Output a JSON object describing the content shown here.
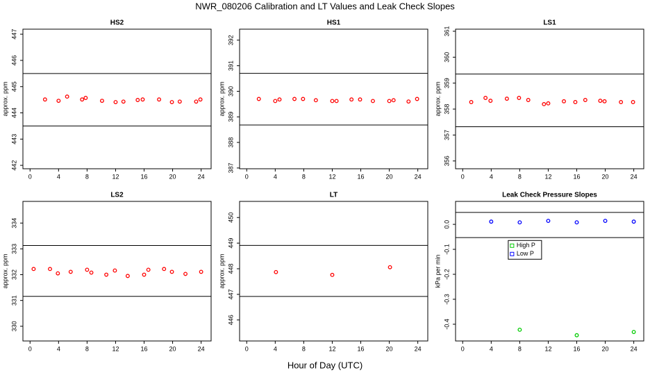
{
  "title": "NWR_080206  Calibration and LT Values and Leak Check Slopes",
  "xlabel": "Hour of Day (UTC)",
  "chart_data": [
    {
      "type": "scatter",
      "title": "HS2",
      "ylabel": "approx. ppm",
      "color": "#ff0000",
      "x": [
        2.1,
        4.0,
        5.2,
        7.3,
        7.8,
        10.1,
        12.0,
        13.1,
        15.1,
        15.8,
        18.1,
        19.9,
        21.0,
        23.3,
        23.9
      ],
      "values": [
        444.51,
        444.46,
        444.62,
        444.51,
        444.57,
        444.46,
        444.41,
        444.43,
        444.49,
        444.51,
        444.51,
        444.41,
        444.43,
        444.43,
        444.51
      ],
      "hlines": [
        445.5,
        443.5
      ],
      "xlim": [
        -1,
        25.4
      ],
      "xticks": [
        0,
        4,
        8,
        12,
        16,
        20,
        24
      ],
      "ylim": [
        441.87,
        447.19
      ],
      "yticks": [
        442,
        443,
        444,
        445,
        446,
        447
      ]
    },
    {
      "type": "scatter",
      "title": "HS1",
      "ylabel": "approx. ppm",
      "color": "#ff0000",
      "x": [
        1.7,
        4.0,
        4.6,
        6.7,
        7.9,
        9.7,
        12.0,
        12.6,
        14.7,
        15.9,
        17.7,
        20.0,
        20.6,
        22.7,
        23.9
      ],
      "values": [
        389.7,
        389.62,
        389.68,
        389.7,
        389.7,
        389.65,
        389.62,
        389.62,
        389.68,
        389.68,
        389.62,
        389.62,
        389.65,
        389.6,
        389.7
      ],
      "hlines": [
        390.7,
        388.68
      ],
      "xlim": [
        -1,
        25.4
      ],
      "xticks": [
        0,
        4,
        8,
        12,
        16,
        20,
        24
      ],
      "ylim": [
        386.97,
        392.43
      ],
      "yticks": [
        387,
        388,
        389,
        390,
        391,
        392
      ]
    },
    {
      "type": "scatter",
      "title": "LS1",
      "ylabel": "approx. ppm",
      "color": "#ff0000",
      "x": [
        1.2,
        3.2,
        3.9,
        6.2,
        7.9,
        9.2,
        11.4,
        12.0,
        14.2,
        15.8,
        17.2,
        19.3,
        19.9,
        22.2,
        23.9
      ],
      "values": [
        358.27,
        358.43,
        358.32,
        358.4,
        358.43,
        358.35,
        358.19,
        358.22,
        358.3,
        358.27,
        358.35,
        358.32,
        358.3,
        358.27,
        358.27
      ],
      "hlines": [
        359.35,
        357.32
      ],
      "xlim": [
        -1,
        25.4
      ],
      "xticks": [
        0,
        4,
        8,
        12,
        16,
        20,
        24
      ],
      "ylim": [
        355.7,
        361.08
      ],
      "yticks": [
        356,
        357,
        358,
        359,
        360,
        361
      ]
    },
    {
      "type": "scatter",
      "title": "LS2",
      "ylabel": "approx. ppm",
      "color": "#ff0000",
      "x": [
        0.5,
        2.8,
        3.9,
        5.7,
        8.0,
        8.6,
        10.7,
        11.9,
        13.7,
        16.0,
        16.6,
        18.8,
        19.9,
        21.8,
        24.0
      ],
      "values": [
        332.22,
        332.22,
        332.05,
        332.11,
        332.19,
        332.08,
        332.0,
        332.16,
        331.95,
        332.0,
        332.19,
        332.22,
        332.11,
        332.03,
        332.11
      ],
      "hlines": [
        333.13,
        331.16
      ],
      "xlim": [
        -1,
        25.4
      ],
      "xticks": [
        0,
        4,
        8,
        12,
        16,
        20,
        24
      ],
      "ylim": [
        329.43,
        334.84
      ],
      "yticks": [
        330,
        331,
        332,
        333,
        334
      ]
    },
    {
      "type": "scatter",
      "title": "LT",
      "ylabel": "approx. ppm",
      "color": "#ff0000",
      "x": [
        4.1,
        12.0,
        20.1
      ],
      "values": [
        447.87,
        447.76,
        448.06
      ],
      "hlines": [
        448.91,
        446.92
      ],
      "xlim": [
        -1,
        25.4
      ],
      "xticks": [
        0,
        4,
        8,
        12,
        16,
        20,
        24
      ],
      "ylim": [
        445.18,
        450.63
      ],
      "yticks": [
        446,
        447,
        448,
        449,
        450
      ]
    },
    {
      "type": "scatter",
      "title": "Leak Check Pressure Slopes",
      "ylabel": "kPa per min",
      "series": [
        {
          "name": "High P",
          "color": "#00cc00",
          "x": [
            8,
            16,
            24
          ],
          "values": [
            -0.422,
            -0.444,
            -0.431
          ]
        },
        {
          "name": "Low P",
          "color": "#0000ff",
          "x": [
            4,
            8,
            12,
            16,
            20,
            24
          ],
          "values": [
            0.011,
            0.008,
            0.014,
            0.008,
            0.014,
            0.011
          ]
        }
      ],
      "hlines": [
        0.048,
        -0.053
      ],
      "legend": "center-left",
      "xlim": [
        -1,
        25.4
      ],
      "xticks": [
        0,
        4,
        8,
        12,
        16,
        20,
        24
      ],
      "ylim": [
        -0.467,
        0.092
      ],
      "yticks": [
        {
          "value": -0.4,
          "label": "-0.4"
        },
        {
          "value": -0.3,
          "label": "-0.3"
        },
        {
          "value": -0.2,
          "label": "-0.2"
        },
        {
          "value": -0.1,
          "label": "-0.1"
        },
        {
          "value": 0,
          "label": "0.0"
        }
      ]
    }
  ]
}
